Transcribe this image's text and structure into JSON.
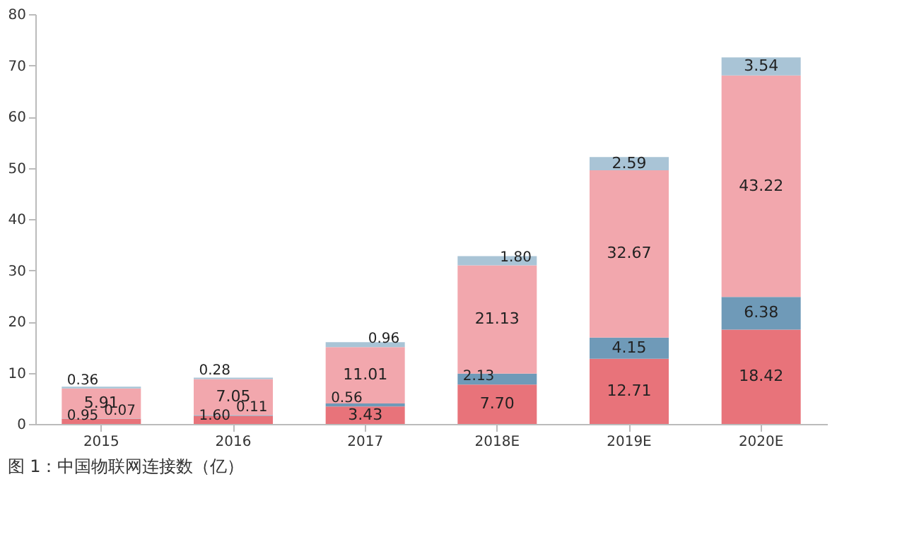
{
  "chart_data": {
    "type": "bar",
    "stacked": true,
    "categories": [
      "2015",
      "2016",
      "2017",
      "2018E",
      "2019E",
      "2020E"
    ],
    "series": [
      {
        "color": "#e8737a",
        "values": [
          0.95,
          1.6,
          3.43,
          7.7,
          12.71,
          18.42
        ],
        "value_labels": [
          "0.95",
          "1.60",
          "3.43",
          "7.70",
          "12.71",
          "18.42"
        ]
      },
      {
        "color": "#6f9ab8",
        "values": [
          0.07,
          0.11,
          0.56,
          2.13,
          4.15,
          6.38
        ],
        "value_labels": [
          "0.07",
          "0.11",
          "0.56",
          "2.13",
          "4.15",
          "6.38"
        ]
      },
      {
        "color": "#f2a7ad",
        "values": [
          5.91,
          7.05,
          11.01,
          21.13,
          32.67,
          43.22
        ],
        "value_labels": [
          "5.91",
          "7.05",
          "11.01",
          "21.13",
          "32.67",
          "43.22"
        ]
      },
      {
        "color": "#a9c4d6",
        "values": [
          0.36,
          0.28,
          0.96,
          1.8,
          2.59,
          3.54
        ],
        "value_labels": [
          "0.36",
          "0.28",
          "0.96",
          "1.80",
          "2.59",
          "3.54"
        ]
      }
    ],
    "ylim": [
      0,
      80
    ],
    "yticks": [
      0,
      10,
      20,
      30,
      40,
      50,
      60,
      70,
      80
    ],
    "grid": false,
    "legend": false,
    "annotations": [
      "图 1：中国物联网连接数（亿）"
    ]
  }
}
